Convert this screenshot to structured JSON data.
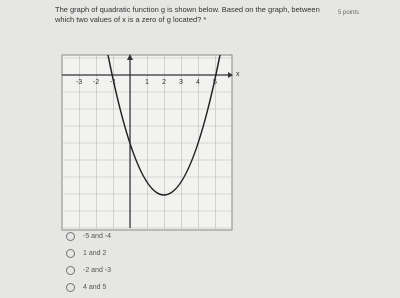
{
  "question": {
    "text": "The graph of quadratic function g is shown below. Based on the graph, between which two values of x is a zero of g located? *",
    "points": "5 points"
  },
  "graph": {
    "axis_label": "x",
    "x_tick_labels": [
      "-3",
      "-2",
      "-1",
      "1",
      "2",
      "3",
      "4",
      "5"
    ]
  },
  "options": [
    "-5 and -4",
    "1 and 2",
    "-2 and -3",
    "4 and 5"
  ]
}
